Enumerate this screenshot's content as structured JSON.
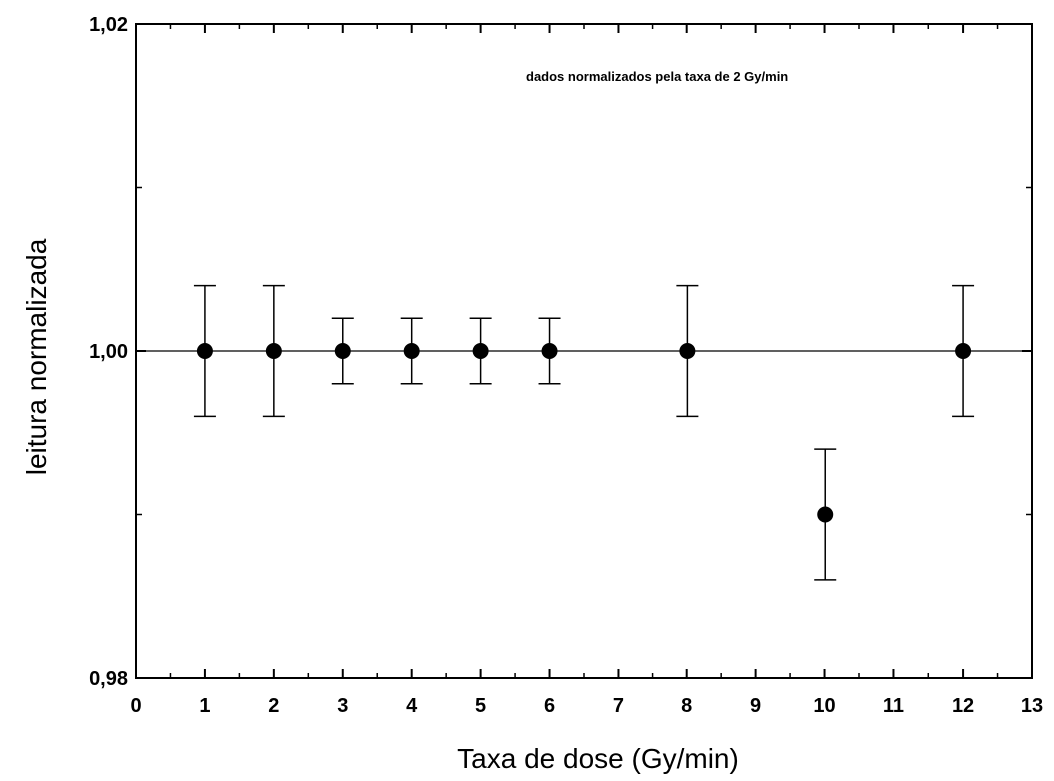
{
  "chart_data": {
    "type": "scatter",
    "title": "",
    "xlabel": "Taxa de dose (Gy/min)",
    "ylabel": "leitura normalizada",
    "annotation": "dados normalizados pela taxa de 2 Gy/min",
    "xlim": [
      0,
      13
    ],
    "ylim": [
      0.98,
      1.02
    ],
    "x_ticks": [
      0,
      1,
      2,
      3,
      4,
      5,
      6,
      7,
      8,
      9,
      10,
      11,
      12,
      13
    ],
    "x_tick_labels": [
      "0",
      "1",
      "2",
      "3",
      "4",
      "5",
      "6",
      "7",
      "8",
      "9",
      "10",
      "11",
      "12",
      "13"
    ],
    "x_tick_positions": [
      0,
      1,
      2,
      3,
      4,
      5,
      6,
      7,
      7.99,
      8.99,
      9.99,
      10.99,
      12,
      13
    ],
    "y_ticks": [
      0.98,
      1.0,
      1.02
    ],
    "y_tick_labels": [
      "0,98",
      "1,00",
      "1,02"
    ],
    "reference_line_y": 1.0,
    "grid": false,
    "marker_color": "#000000",
    "points": [
      {
        "x": 1,
        "y": 1.0,
        "err": 0.004
      },
      {
        "x": 2,
        "y": 1.0,
        "err": 0.004
      },
      {
        "x": 3,
        "y": 1.0,
        "err": 0.002
      },
      {
        "x": 4,
        "y": 1.0,
        "err": 0.002
      },
      {
        "x": 5,
        "y": 1.0,
        "err": 0.002
      },
      {
        "x": 6,
        "y": 1.0,
        "err": 0.002
      },
      {
        "x": 8,
        "y": 1.0,
        "err": 0.004
      },
      {
        "x": 10,
        "y": 0.99,
        "err": 0.004
      },
      {
        "x": 12,
        "y": 1.0,
        "err": 0.004
      }
    ]
  }
}
